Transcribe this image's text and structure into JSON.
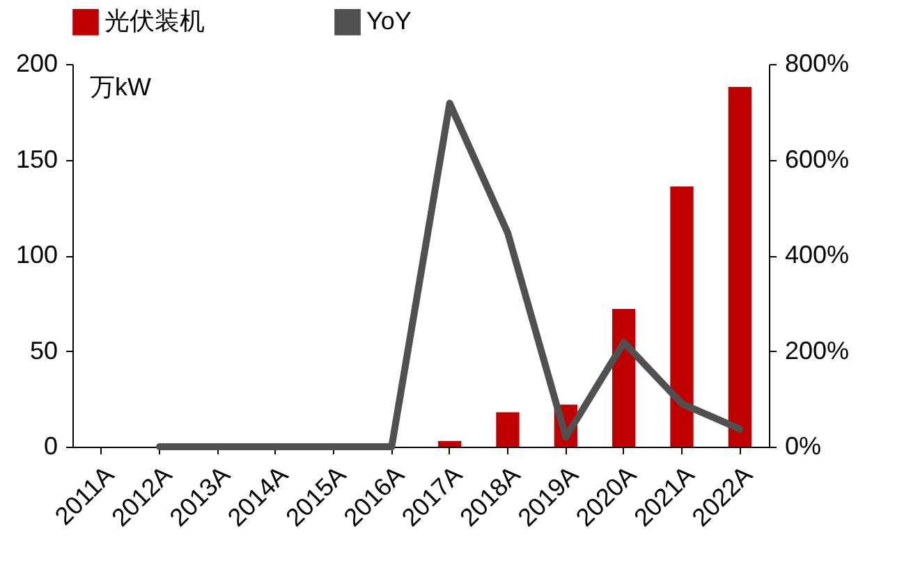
{
  "chart_data": {
    "type": "bar",
    "ylabel": "万kW",
    "categories": [
      "2011A",
      "2012A",
      "2013A",
      "2014A",
      "2015A",
      "2016A",
      "2017A",
      "2018A",
      "2019A",
      "2020A",
      "2021A",
      "2022A"
    ],
    "series": [
      {
        "name": "光伏装机",
        "color": "#c00000",
        "values": [
          0,
          0,
          0,
          0,
          0,
          0,
          3,
          18,
          22,
          72,
          136,
          188
        ]
      },
      {
        "name": "YoY",
        "type": "line",
        "axis": "y2",
        "color": "#505050",
        "values": [
          null,
          0,
          0,
          0,
          0,
          0,
          718,
          447,
          20,
          218,
          90,
          37
        ]
      }
    ],
    "ylim": [
      0,
      200
    ],
    "yticks": [
      0,
      50,
      100,
      150,
      200
    ],
    "y2lim": [
      0,
      800
    ],
    "y2ticks": [
      {
        "value": 0,
        "label": "0%"
      },
      {
        "value": 200,
        "label": "200%"
      },
      {
        "value": 400,
        "label": "400%"
      },
      {
        "value": 600,
        "label": "600%"
      },
      {
        "value": 800,
        "label": "800%"
      }
    ],
    "legend": "top",
    "grid": false,
    "marker": "none",
    "line_style": "solid"
  }
}
